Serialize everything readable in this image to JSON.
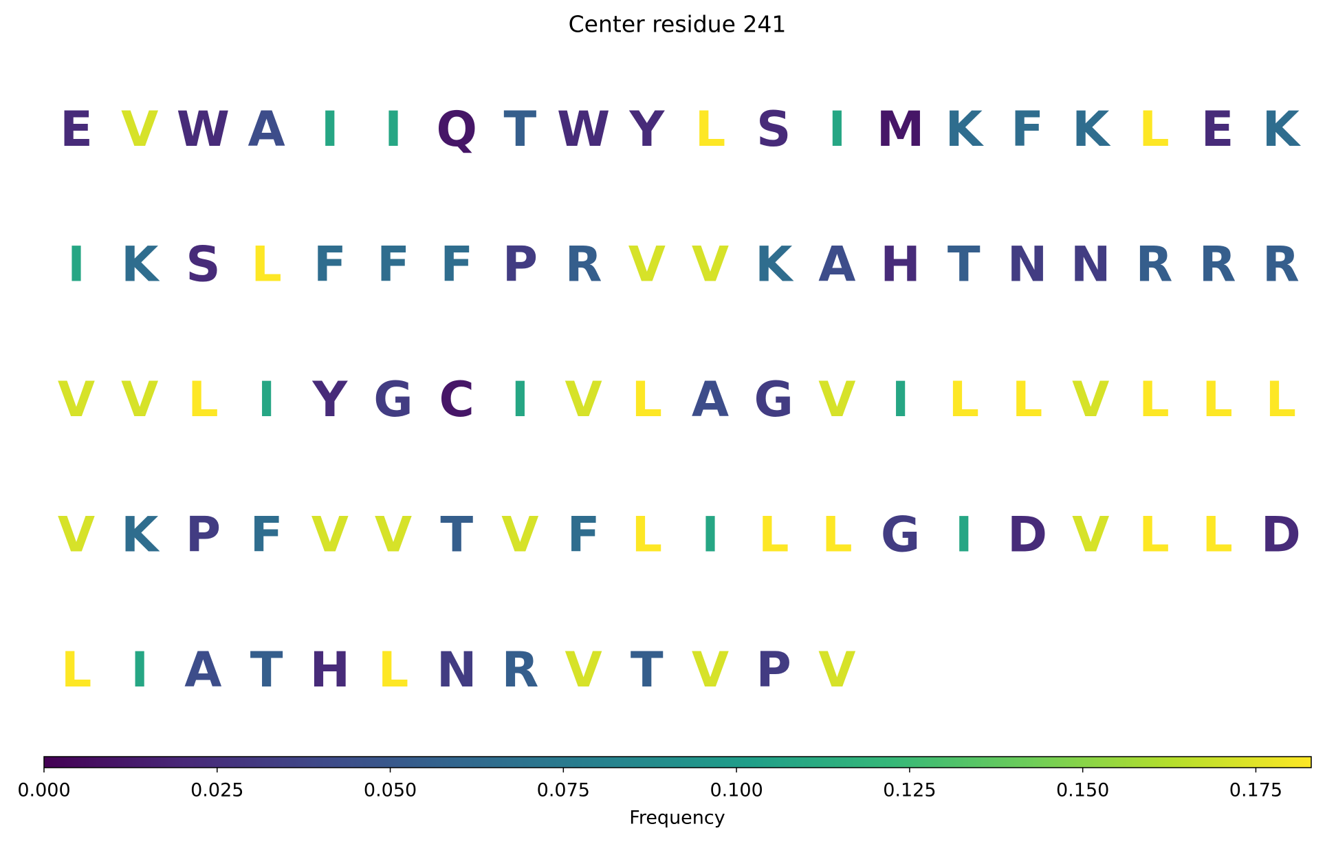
{
  "chart_data": {
    "type": "letters",
    "title": "Center residue 241",
    "colorbar_label": "Frequency",
    "colormap": "viridis",
    "letters": [
      "E",
      "V",
      "W",
      "A",
      "I",
      "I",
      "Q",
      "T",
      "W",
      "Y",
      "L",
      "S",
      "I",
      "M",
      "K",
      "F",
      "K",
      "L",
      "E",
      "K",
      "I",
      "K",
      "S",
      "L",
      "F",
      "F",
      "F",
      "P",
      "R",
      "V",
      "V",
      "K",
      "A",
      "H",
      "T",
      "N",
      "N",
      "R",
      "R",
      "R",
      "V",
      "V",
      "L",
      "I",
      "Y",
      "G",
      "C",
      "I",
      "V",
      "L",
      "A",
      "G",
      "V",
      "I",
      "L",
      "L",
      "V",
      "L",
      "L",
      "L",
      "V",
      "K",
      "P",
      "F",
      "V",
      "V",
      "T",
      "V",
      "F",
      "L",
      "I",
      "L",
      "L",
      "G",
      "I",
      "D",
      "V",
      "L",
      "L",
      "D",
      "L",
      "I",
      "A",
      "T",
      "H",
      "L",
      "N",
      "R",
      "V",
      "T",
      "V",
      "P",
      "V"
    ],
    "values": [
      0.022,
      0.172,
      0.022,
      0.043,
      0.108,
      0.108,
      0.011,
      0.054,
      0.022,
      0.022,
      0.183,
      0.022,
      0.108,
      0.011,
      0.065,
      0.065,
      0.065,
      0.183,
      0.022,
      0.065,
      0.108,
      0.065,
      0.022,
      0.183,
      0.065,
      0.065,
      0.065,
      0.032,
      0.054,
      0.172,
      0.172,
      0.065,
      0.043,
      0.022,
      0.054,
      0.032,
      0.032,
      0.054,
      0.054,
      0.054,
      0.172,
      0.172,
      0.183,
      0.108,
      0.022,
      0.032,
      0.011,
      0.108,
      0.172,
      0.183,
      0.043,
      0.032,
      0.172,
      0.108,
      0.183,
      0.183,
      0.172,
      0.183,
      0.183,
      0.183,
      0.172,
      0.065,
      0.032,
      0.065,
      0.172,
      0.172,
      0.054,
      0.172,
      0.065,
      0.183,
      0.108,
      0.183,
      0.183,
      0.032,
      0.108,
      0.022,
      0.172,
      0.183,
      0.183,
      0.022,
      0.183,
      0.108,
      0.043,
      0.054,
      0.022,
      0.183,
      0.032,
      0.054,
      0.172,
      0.054,
      0.172,
      0.032,
      0.172
    ],
    "clim": [
      0,
      0.183
    ],
    "cticks": [
      {
        "value": 0,
        "label": "0.000"
      },
      {
        "value": 0.025,
        "label": "0.025"
      },
      {
        "value": 0.05,
        "label": "0.050"
      },
      {
        "value": 0.075,
        "label": "0.075"
      },
      {
        "value": 0.1,
        "label": "0.100"
      },
      {
        "value": 0.125,
        "label": "0.125"
      },
      {
        "value": 0.15,
        "label": "0.150"
      },
      {
        "value": 0.175,
        "label": "0.175"
      }
    ]
  }
}
